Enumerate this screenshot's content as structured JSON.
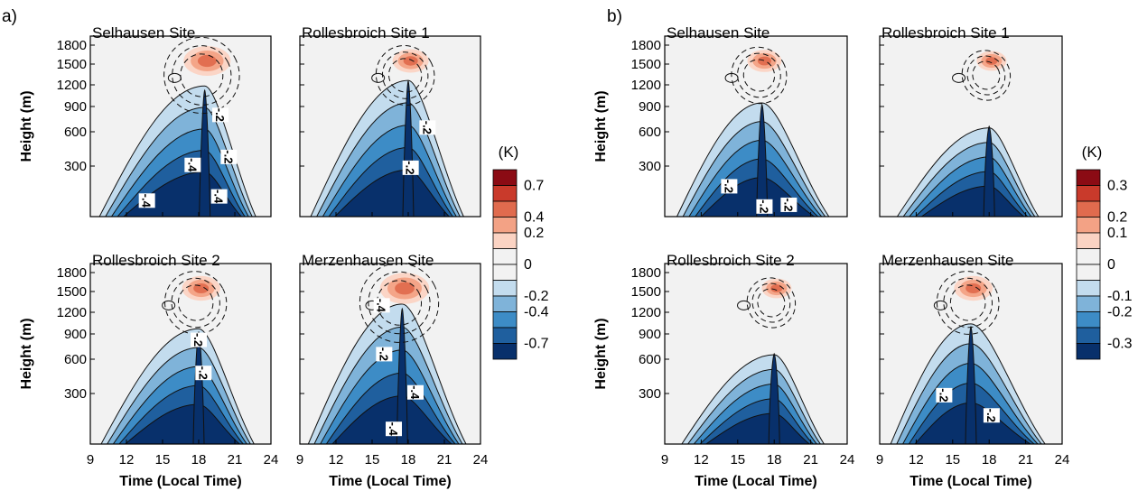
{
  "chart_data": [
    {
      "type": "heatmap",
      "panel_label": "a)",
      "colorbar_title": "(K)",
      "colorbar_labels": [
        "0.7",
        "0.4",
        "0.2",
        "0",
        "-0.2",
        "-0.4",
        "-0.7"
      ],
      "x_ticks": [
        "9",
        "12",
        "15",
        "18",
        "21",
        "24"
      ],
      "y_ticks": [
        "1800",
        "1500",
        "1200",
        "900",
        "600",
        "300"
      ],
      "ylabel": "Height (m)",
      "xlabel": "Time (Local Time)",
      "subplots": [
        {
          "title": "Selhausen Site",
          "peak_time": 18.5,
          "depth": 0.8,
          "neg": 0.62,
          "pos": 0.75,
          "labels": [
            {
              "t": "-.2",
              "x": 19.8,
              "h": 800
            },
            {
              "t": "-.4",
              "x": 17.5,
              "h": 310
            },
            {
              "t": "-.2",
              "x": 20.5,
              "h": 380
            },
            {
              "t": "-.4",
              "x": 13.7,
              "h": 95
            },
            {
              "t": "-.4",
              "x": 19.7,
              "h": 120
            }
          ]
        },
        {
          "title": "Rollesbroich Site 1",
          "peak_time": 18,
          "depth": 0.85,
          "neg": 0.55,
          "pos": 0.5,
          "labels": [
            {
              "t": "-.2",
              "x": 19.6,
              "h": 650
            },
            {
              "t": "-.2",
              "x": 18.2,
              "h": 290
            }
          ]
        },
        {
          "title": "Rollesbroich Site 2",
          "peak_time": 18,
          "depth": 0.72,
          "neg": 0.55,
          "pos": 0.55,
          "labels": [
            {
              "t": "-.2",
              "x": 18,
              "h": 830
            },
            {
              "t": "-.2",
              "x": 18.4,
              "h": 480
            }
          ]
        },
        {
          "title": "Merzenhausen Site",
          "peak_time": 17.5,
          "depth": 0.85,
          "neg": 0.65,
          "pos": 0.8,
          "labels": [
            {
              "t": "-.4",
              "x": 15.8,
              "h": 1300
            },
            {
              "t": "-.2",
              "x": 16,
              "h": 660
            },
            {
              "t": "-.4",
              "x": 18.6,
              "h": 310
            },
            {
              "t": "-.4",
              "x": 16.8,
              "h": 90
            }
          ]
        }
      ]
    },
    {
      "type": "heatmap",
      "panel_label": "b)",
      "colorbar_title": "(K)",
      "colorbar_labels": [
        "0.3",
        "0.2",
        "0.1",
        "0",
        "-0.1",
        "-0.2",
        "-0.3"
      ],
      "x_ticks": [
        "9",
        "12",
        "15",
        "18",
        "21",
        "24"
      ],
      "y_ticks": [
        "1800",
        "1500",
        "1200",
        "900",
        "600",
        "300"
      ],
      "ylabel": "Height (m)",
      "xlabel": "Time (Local Time)",
      "subplots": [
        {
          "title": "Selhausen Site",
          "peak_time": 17,
          "depth": 0.72,
          "neg": 0.5,
          "pos": 0.45,
          "labels": [
            {
              "t": "-.2",
              "x": 14.3,
              "h": 180
            },
            {
              "t": "-.2",
              "x": 17.2,
              "h": 60
            },
            {
              "t": "-.2",
              "x": 19.2,
              "h": 70
            }
          ]
        },
        {
          "title": "Rollesbroich Site 1",
          "peak_time": 18,
          "depth": 0.6,
          "neg": 0.28,
          "pos": 0.35,
          "labels": []
        },
        {
          "title": "Rollesbroich Site 2",
          "peak_time": 18,
          "depth": 0.6,
          "neg": 0.3,
          "pos": 0.35,
          "labels": []
        },
        {
          "title": "Merzenhausen Site",
          "peak_time": 16.5,
          "depth": 0.75,
          "neg": 0.55,
          "pos": 0.55,
          "labels": [
            {
              "t": "-.2",
              "x": 14.3,
              "h": 290
            },
            {
              "t": "-.2",
              "x": 18.2,
              "h": 170
            }
          ]
        }
      ]
    }
  ],
  "colors": {
    "neg": [
      "#08306b",
      "#1f5f9e",
      "#3d8cc6",
      "#7fb3d9",
      "#c3dcee",
      "#f2f2f2"
    ],
    "pos": [
      "#f2f2f2",
      "#fbd3c3",
      "#f3a285",
      "#e06b4e",
      "#c93a2b",
      "#8b0b14"
    ]
  }
}
